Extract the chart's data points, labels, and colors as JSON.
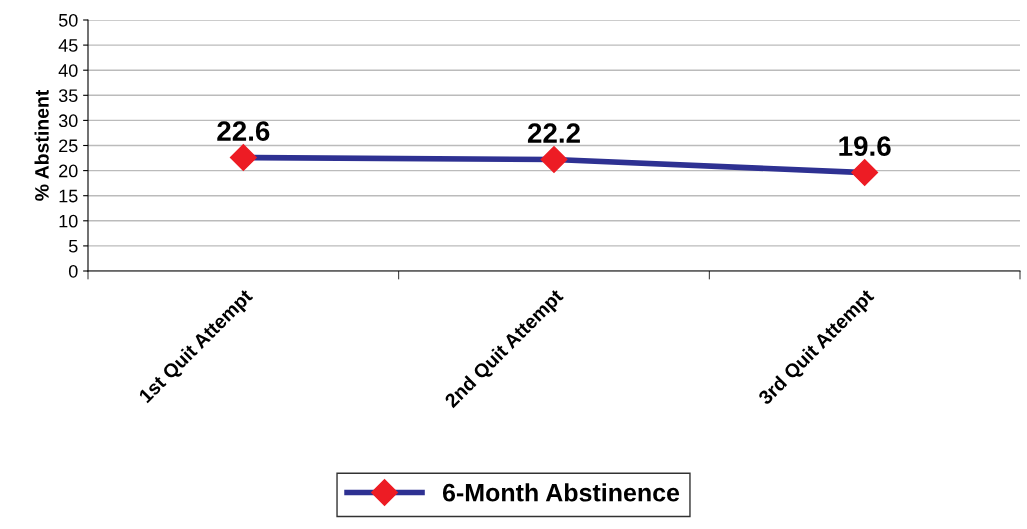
{
  "chart_data": {
    "type": "line",
    "ylabel": "% Abstinent",
    "categories": [
      "1st Quit Attempt",
      "2nd Quit Attempt",
      "3rd Quit Attempt"
    ],
    "series": [
      {
        "name": "6-Month Abstinence",
        "color": "#2e3192",
        "colors": [
          "#ed1c24",
          "#ed1c24",
          "#ed1c24"
        ],
        "values": [
          22.6,
          22.2,
          19.6
        ]
      }
    ],
    "ylim": [
      0,
      50
    ],
    "yticks": [
      0,
      5,
      10,
      15,
      20,
      25,
      30,
      35,
      40,
      45,
      50
    ],
    "grid": "y",
    "legend": "bottom",
    "marker": "diamond",
    "line_style": "solid",
    "data_labels": true
  }
}
